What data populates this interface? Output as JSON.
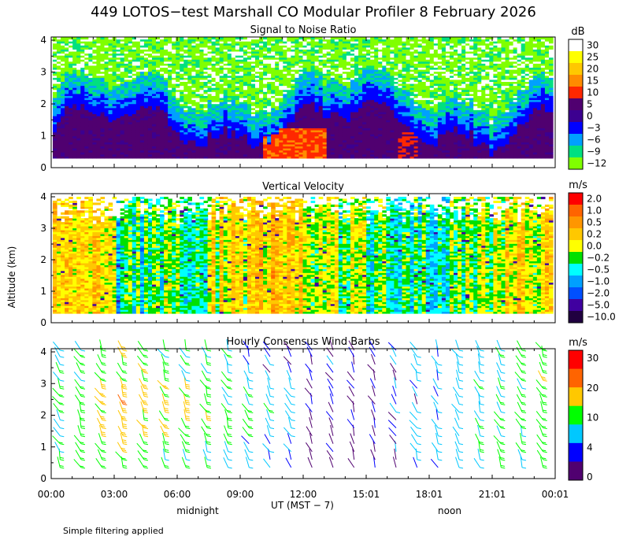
{
  "figure": {
    "title": "449 LOTOS−test Marshall CO Modular Profiler  8 February 2026",
    "ylabel": "Altitude (km)",
    "xlabel": "UT  (MST − 7)",
    "midnight_label": "midnight",
    "noon_label": "noon",
    "footnote": "Simple filtering applied",
    "x_tick_labels": [
      "00:00",
      "03:00",
      "06:00",
      "09:00",
      "12:00",
      "15:01",
      "18:01",
      "21:01",
      "00:01"
    ]
  },
  "chart_data": [
    {
      "type": "heatmap",
      "title": "Signal to Noise Ratio",
      "ylabel": "Altitude (km)",
      "ylim": [
        0,
        4.1
      ],
      "y_ticks": [
        "0",
        "1",
        "2",
        "3",
        "4"
      ],
      "xlim_hours": [
        0,
        24
      ],
      "colorbar_units": "dB",
      "colorbar_labels": [
        "30",
        "25",
        "20",
        "15",
        "10",
        "5",
        "0",
        "−3",
        "−6",
        "−9",
        "−12"
      ],
      "colorbar_colors": [
        "#ffffff",
        "#ffff00",
        "#ffc800",
        "#ff8c00",
        "#ff2800",
        "#500070",
        "#3c0090",
        "#0000ff",
        "#00a0ff",
        "#00e080",
        "#80ff00"
      ],
      "description_of_field": "high SNR (5-15 dB) below ~1.5 km, peak ~10-15 dB near 0.3-1 km between 10:00-13:00 UT; green/white (low) above 2.5 km"
    },
    {
      "type": "heatmap",
      "title": "Vertical Velocity",
      "ylabel": "Altitude (km)",
      "ylim": [
        0,
        4.1
      ],
      "y_ticks": [
        "0",
        "1",
        "2",
        "3",
        "4"
      ],
      "xlim_hours": [
        0,
        24
      ],
      "colorbar_units": "m/s",
      "colorbar_labels": [
        "2.0",
        "1.0",
        "0.5",
        "0.2",
        "0.0",
        "−0.2",
        "−0.5",
        "−1.0",
        "−2.0",
        "−5.0",
        "−10.0"
      ],
      "colorbar_colors": [
        "#ff0000",
        "#ff6400",
        "#ff9600",
        "#ffc800",
        "#ffff00",
        "#00e000",
        "#00ffff",
        "#00a0ff",
        "#0050ff",
        "#4000a0",
        "#200040"
      ]
    },
    {
      "type": "scatter",
      "title": "Hourly Consensus Wind Barbs",
      "ylabel": "Altitude (km)",
      "ylim": [
        0,
        4.1
      ],
      "y_ticks": [
        "0",
        "1",
        "2",
        "3",
        "4"
      ],
      "xlim_hours": [
        0,
        24
      ],
      "colorbar_units": "m/s",
      "colorbar_labels": [
        "30",
        "20",
        "10",
        "4",
        "0"
      ],
      "colorbar_colors": [
        "#ff0000",
        "#ff6400",
        "#ffc800",
        "#00ff00",
        "#00c8ff",
        "#0000ff",
        "#500070"
      ],
      "colorbar_speed_bounds": [
        0,
        4,
        10,
        20,
        30,
        35
      ],
      "barb_hours": [
        0,
        1,
        2,
        3,
        4,
        5,
        6,
        7,
        8,
        9,
        10,
        11,
        12,
        13,
        14,
        15,
        16,
        17,
        18,
        19,
        20,
        21,
        22,
        23
      ],
      "barb_altitudes_km": [
        0.35,
        0.6,
        0.85,
        1.1,
        1.35,
        1.6,
        1.85,
        2.1,
        2.35,
        2.6,
        2.85,
        3.1,
        3.35,
        3.6,
        3.85,
        4.05
      ],
      "note": "winds generally westerly-northwesterly, 5-15 m/s, stronger (15-20 m/s) near 1.5-3 km between 02:00-12:00 UT"
    }
  ]
}
